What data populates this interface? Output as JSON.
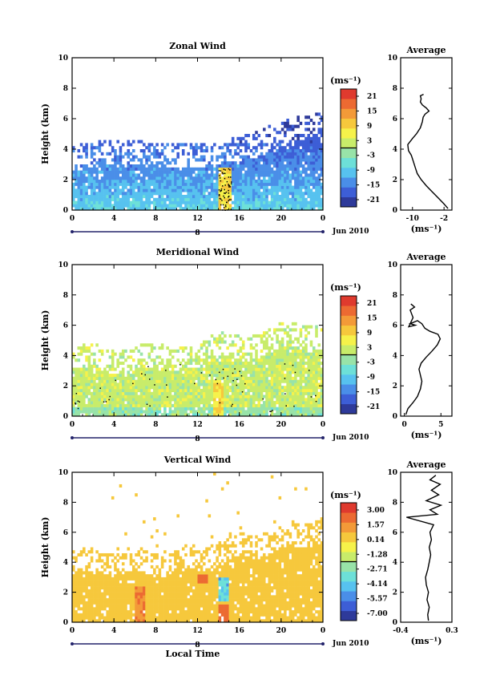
{
  "figure": {
    "date_label": "Jun 2010",
    "date_day": "8",
    "xlabel_bottom": "Local Time"
  },
  "colorscale": [
    "#2e3a9a",
    "#3d5ed6",
    "#4a8ee8",
    "#57c2ef",
    "#6de0d8",
    "#98e3a8",
    "#c8ec6a",
    "#f6f24a",
    "#f6c83c",
    "#f39a38",
    "#ec6a32",
    "#df3a2e"
  ],
  "chart_data": [
    {
      "type": "heatmap",
      "title": "Zonal Wind",
      "ylabel": "Height (km)",
      "xlabel": "",
      "x_ticks": [
        "0",
        "4",
        "8",
        "12",
        "16",
        "20",
        "0"
      ],
      "y_ticks": [
        "0",
        "2",
        "4",
        "6",
        "8",
        "10"
      ],
      "xlim": [
        0,
        24
      ],
      "ylim": [
        0,
        10
      ],
      "colorbar_unit": "(ms⁻¹)",
      "colorbar_ticks": [
        "21",
        "15",
        "9",
        "3",
        "-3",
        "-9",
        "-15",
        "-21"
      ],
      "colorbar_range": [
        -24,
        24
      ],
      "profile": {
        "title": "Average",
        "xlabel": "(ms⁻¹)",
        "x_ticks": [
          "-10",
          "-2"
        ],
        "xlim": [
          -13,
          0
        ],
        "y_ticks": [
          "0",
          "2",
          "4",
          "6",
          "8",
          "10"
        ],
        "points": [
          [
            -1.0,
            0.1
          ],
          [
            -2.0,
            0.4
          ],
          [
            -3.5,
            0.8
          ],
          [
            -5.0,
            1.2
          ],
          [
            -6.5,
            1.6
          ],
          [
            -7.8,
            2.0
          ],
          [
            -8.8,
            2.4
          ],
          [
            -9.3,
            2.8
          ],
          [
            -9.8,
            3.2
          ],
          [
            -10.3,
            3.6
          ],
          [
            -11.0,
            3.9
          ],
          [
            -11.2,
            4.3
          ],
          [
            -10.0,
            4.7
          ],
          [
            -9.0,
            5.0
          ],
          [
            -8.0,
            5.4
          ],
          [
            -7.5,
            5.8
          ],
          [
            -7.3,
            6.1
          ],
          [
            -6.8,
            6.3
          ],
          [
            -5.8,
            6.5
          ],
          [
            -6.5,
            6.7
          ],
          [
            -7.5,
            6.9
          ],
          [
            -8.0,
            7.1
          ],
          [
            -7.8,
            7.3
          ],
          [
            -8.0,
            7.5
          ],
          [
            -7.2,
            7.6
          ]
        ]
      }
    },
    {
      "type": "heatmap",
      "title": "Meridional Wind",
      "ylabel": "Height (km)",
      "xlabel": "",
      "x_ticks": [
        "0",
        "4",
        "8",
        "12",
        "16",
        "20",
        "0"
      ],
      "y_ticks": [
        "0",
        "2",
        "4",
        "6",
        "8",
        "10"
      ],
      "xlim": [
        0,
        24
      ],
      "ylim": [
        0,
        10
      ],
      "colorbar_unit": "(ms⁻¹)",
      "colorbar_ticks": [
        "21",
        "15",
        "9",
        "3",
        "-3",
        "-9",
        "-15",
        "-21"
      ],
      "colorbar_range": [
        -24,
        24
      ],
      "profile": {
        "title": "Average",
        "xlabel": "(ms⁻¹)",
        "x_ticks": [
          "0",
          "5"
        ],
        "xlim": [
          -0.5,
          6.5
        ],
        "y_ticks": [
          "0",
          "2",
          "4",
          "6",
          "8",
          "10"
        ],
        "points": [
          [
            0.2,
            0.1
          ],
          [
            0.5,
            0.5
          ],
          [
            1.2,
            0.9
          ],
          [
            1.8,
            1.3
          ],
          [
            2.2,
            1.8
          ],
          [
            2.4,
            2.3
          ],
          [
            2.2,
            2.7
          ],
          [
            2.0,
            3.1
          ],
          [
            2.3,
            3.5
          ],
          [
            3.0,
            3.9
          ],
          [
            3.8,
            4.3
          ],
          [
            4.5,
            4.7
          ],
          [
            4.9,
            5.1
          ],
          [
            4.6,
            5.4
          ],
          [
            3.5,
            5.6
          ],
          [
            2.8,
            5.8
          ],
          [
            2.4,
            6.1
          ],
          [
            1.8,
            6.3
          ],
          [
            0.8,
            6.1
          ],
          [
            1.5,
            6.0
          ],
          [
            0.6,
            5.9
          ],
          [
            1.2,
            6.5
          ],
          [
            0.8,
            7.0
          ],
          [
            1.4,
            7.2
          ],
          [
            0.9,
            7.4
          ]
        ]
      }
    },
    {
      "type": "heatmap",
      "title": "Vertical Wind",
      "ylabel": "Height (km)",
      "xlabel": "Local Time",
      "x_ticks": [
        "0",
        "4",
        "8",
        "12",
        "16",
        "20",
        "0"
      ],
      "y_ticks": [
        "0",
        "2",
        "4",
        "6",
        "8",
        "10"
      ],
      "xlim": [
        0,
        24
      ],
      "ylim": [
        0,
        10
      ],
      "colorbar_unit": "(ms⁻¹)",
      "colorbar_ticks": [
        "3.00",
        "1.57",
        "0.14",
        "-1.28",
        "-2.71",
        "-4.14",
        "-5.57",
        "-7.00"
      ],
      "colorbar_range": [
        -7.7,
        3.7
      ],
      "profile": {
        "title": "Average",
        "xlabel": "(ms⁻¹)",
        "x_ticks": [
          "-0.4",
          "0.3"
        ],
        "xlim": [
          -0.4,
          0.3
        ],
        "y_ticks": [
          "0",
          "2",
          "4",
          "6",
          "8",
          "10"
        ],
        "points": [
          [
            -0.02,
            0.1
          ],
          [
            -0.03,
            0.5
          ],
          [
            -0.01,
            1.0
          ],
          [
            -0.04,
            1.5
          ],
          [
            -0.02,
            2.0
          ],
          [
            -0.05,
            2.5
          ],
          [
            -0.06,
            3.0
          ],
          [
            -0.03,
            3.5
          ],
          [
            -0.01,
            4.0
          ],
          [
            0.01,
            4.5
          ],
          [
            -0.01,
            5.0
          ],
          [
            0.02,
            5.5
          ],
          [
            0.0,
            6.0
          ],
          [
            0.05,
            6.5
          ],
          [
            -0.32,
            7.0
          ],
          [
            0.1,
            7.2
          ],
          [
            0.0,
            7.5
          ],
          [
            0.15,
            7.8
          ],
          [
            -0.05,
            8.1
          ],
          [
            0.12,
            8.5
          ],
          [
            0.02,
            8.8
          ],
          [
            0.14,
            9.2
          ],
          [
            0.0,
            9.5
          ],
          [
            0.08,
            9.8
          ]
        ]
      }
    }
  ]
}
